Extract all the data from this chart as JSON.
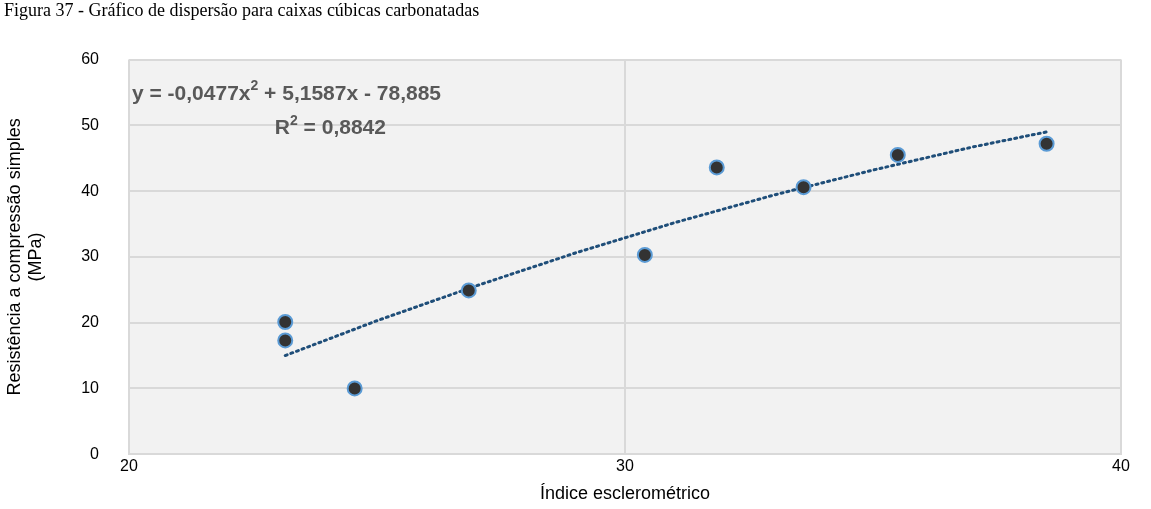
{
  "chart_data": {
    "type": "scatter",
    "title": "Figura 37 - Gráfico de dispersão para caixas cúbicas carbonatadas",
    "xlabel": "Índice esclerométrico",
    "ylabel": "Resistência a compressão simples\n(MPa)",
    "series": [
      {
        "color": "#333333",
        "marker": "circle",
        "x": [
          23.15,
          23.15,
          24.55,
          26.85,
          30.4,
          31.85,
          33.6,
          35.5,
          38.5
        ],
        "values": [
          20.1,
          17.3,
          10,
          24.9,
          30.3,
          43.6,
          40.6,
          45.5,
          47.2
        ]
      },
      {
        "type": "line",
        "color": "#1f4e79",
        "marker": "none",
        "line_style": "dotted",
        "x": [
          23.15,
          25,
          27,
          29,
          31,
          33,
          35,
          37,
          38.5
        ],
        "values": [
          15.0,
          20.3,
          25.6,
          30.6,
          35.2,
          39.4,
          43.2,
          46.7,
          49.0
        ]
      }
    ],
    "annotations": [
      "y = -0,0477x$^{2}$ + 5,1587x - 78,885",
      "R$^{2}$ = 0,8842"
    ],
    "xlim": [
      20,
      40
    ],
    "xticks": [
      20,
      30,
      40
    ],
    "ylim": [
      0,
      60
    ],
    "yticks": [
      0,
      10,
      20,
      30,
      40,
      50,
      60
    ],
    "grid": true,
    "legend": false
  }
}
